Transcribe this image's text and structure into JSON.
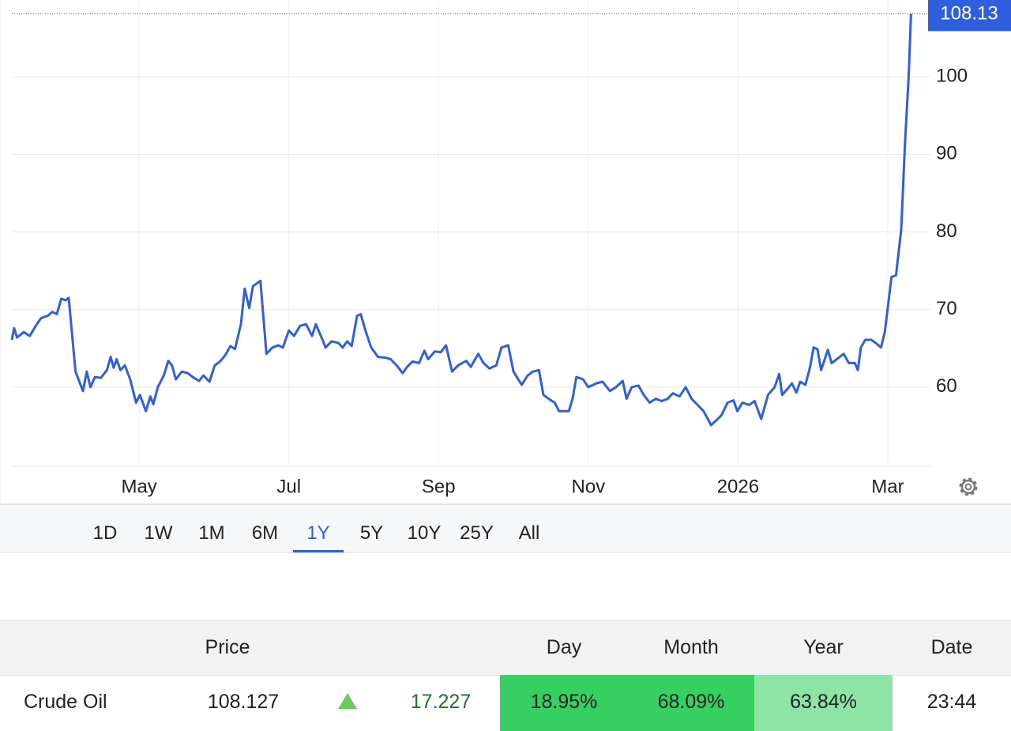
{
  "chart_data": {
    "type": "line",
    "color": "#2f5fdf",
    "grid": true,
    "x": [
      3.3,
      3.33,
      3.37,
      3.46,
      3.54,
      3.62,
      3.69,
      3.78,
      3.84,
      3.9,
      3.96,
      4.02,
      4.06,
      4.15,
      4.25,
      4.3,
      4.35,
      4.41,
      4.49,
      4.57,
      4.62,
      4.66,
      4.7,
      4.75,
      4.81,
      4.88,
      4.96,
      5.01,
      5.09,
      5.15,
      5.19,
      5.25,
      5.33,
      5.39,
      5.44,
      5.49,
      5.57,
      5.65,
      5.73,
      5.8,
      5.86,
      5.94,
      6.01,
      6.08,
      6.15,
      6.22,
      6.28,
      6.36,
      6.41,
      6.47,
      6.52,
      6.62,
      6.7,
      6.78,
      6.86,
      6.92,
      7.0,
      7.07,
      7.15,
      7.23,
      7.31,
      7.36,
      7.45,
      7.49,
      7.57,
      7.66,
      7.72,
      7.78,
      7.84,
      7.91,
      7.96,
      8.03,
      8.1,
      8.19,
      8.29,
      8.36,
      8.45,
      8.52,
      8.58,
      8.65,
      8.74,
      8.81,
      8.86,
      8.95,
      9.03,
      9.1,
      9.18,
      9.26,
      9.37,
      9.43,
      9.53,
      9.6,
      9.68,
      9.77,
      9.84,
      9.93,
      10.0,
      10.11,
      10.19,
      10.26,
      10.34,
      10.4,
      10.47,
      10.55,
      10.61,
      10.74,
      10.79,
      10.84,
      10.93,
      11.0,
      11.11,
      11.19,
      11.29,
      11.37,
      11.46,
      11.51,
      11.58,
      11.67,
      11.74,
      11.82,
      11.9,
      11.98,
      12.06,
      12.13,
      12.22,
      12.3,
      12.38,
      12.45,
      12.54,
      12.64,
      12.73,
      12.78,
      12.86,
      12.94,
      12.99,
      13.06,
      13.15,
      13.22,
      13.31,
      13.4,
      13.49,
      13.55,
      13.59,
      13.68,
      13.72,
      13.78,
      13.83,
      13.9,
      13.96,
      14.01,
      14.06,
      14.11,
      14.2,
      14.25,
      14.32,
      14.41,
      14.48,
      14.56,
      14.6,
      14.64,
      14.7,
      14.78,
      14.85,
      14.91,
      14.96,
      15.05,
      15.11,
      15.18,
      15.23,
      15.28,
      15.31
    ],
    "values": [
      66.1,
      67.6,
      66.4,
      67.1,
      66.6,
      67.9,
      68.9,
      69.2,
      69.7,
      69.4,
      71.4,
      71.2,
      71.5,
      62.0,
      59.5,
      62.0,
      60.0,
      61.3,
      61.2,
      62.2,
      63.9,
      62.5,
      63.6,
      62.2,
      62.8,
      61.0,
      58.0,
      59.0,
      56.9,
      58.8,
      57.8,
      60.0,
      61.5,
      63.4,
      62.8,
      61.0,
      62.0,
      61.8,
      61.2,
      60.8,
      61.5,
      60.7,
      62.8,
      63.3,
      64.1,
      65.3,
      64.9,
      68.1,
      72.7,
      70.2,
      73.0,
      73.7,
      64.3,
      65.1,
      65.4,
      65.1,
      67.3,
      66.6,
      67.9,
      68.1,
      66.6,
      68.1,
      66.1,
      65.1,
      65.9,
      65.7,
      65.1,
      65.9,
      65.3,
      69.2,
      69.4,
      67.1,
      65.1,
      63.9,
      63.8,
      63.6,
      62.7,
      61.8,
      62.6,
      63.3,
      63.1,
      64.7,
      63.6,
      64.6,
      64.5,
      65.4,
      62.0,
      62.8,
      63.4,
      62.6,
      64.3,
      63.1,
      62.4,
      62.8,
      65.1,
      65.4,
      62.0,
      60.3,
      61.5,
      62.0,
      62.2,
      59.0,
      58.5,
      58.0,
      56.9,
      56.9,
      58.5,
      61.3,
      61.0,
      60.0,
      60.5,
      60.7,
      59.5,
      60.0,
      60.8,
      58.5,
      60.0,
      60.2,
      59.0,
      58.0,
      58.5,
      58.2,
      58.5,
      59.2,
      58.8,
      60.0,
      58.5,
      57.8,
      56.9,
      55.1,
      55.9,
      56.4,
      58.0,
      58.3,
      56.9,
      58.0,
      57.7,
      58.2,
      55.9,
      59.0,
      60.0,
      61.7,
      59.0,
      60.0,
      60.5,
      59.3,
      60.7,
      60.3,
      62.5,
      65.1,
      64.9,
      62.2,
      64.8,
      63.1,
      63.6,
      64.3,
      63.1,
      63.1,
      62.2,
      65.1,
      66.1,
      66.1,
      65.6,
      65.1,
      67.1,
      74.2,
      74.4,
      80.3,
      91.5,
      100.2,
      108.13
    ],
    "xlim": [
      3.3,
      15.57
    ],
    "xticks": [
      {
        "value": 5,
        "label": "May"
      },
      {
        "value": 7,
        "label": "Jul"
      },
      {
        "value": 9,
        "label": "Sep"
      },
      {
        "value": 11,
        "label": "Nov"
      },
      {
        "value": 13,
        "label": "2026"
      },
      {
        "value": 15,
        "label": "Mar"
      }
    ],
    "ylim": [
      49.8,
      109.9
    ],
    "yticks": [
      60,
      70,
      80,
      90,
      100
    ],
    "last_value": 108.13
  },
  "range_buttons": {
    "items": [
      "1D",
      "1W",
      "1M",
      "6M",
      "1Y",
      "5Y",
      "10Y",
      "25Y",
      "All"
    ],
    "selected": "1Y"
  },
  "table": {
    "header": {
      "price": "Price",
      "day": "Day",
      "month": "Month",
      "year": "Year",
      "date": "Date"
    },
    "row": {
      "name": "Crude Oil",
      "price": "108.127",
      "change": "17.227",
      "day": "18.95%",
      "month": "68.09%",
      "year": "63.84%",
      "date": "23:44"
    }
  }
}
